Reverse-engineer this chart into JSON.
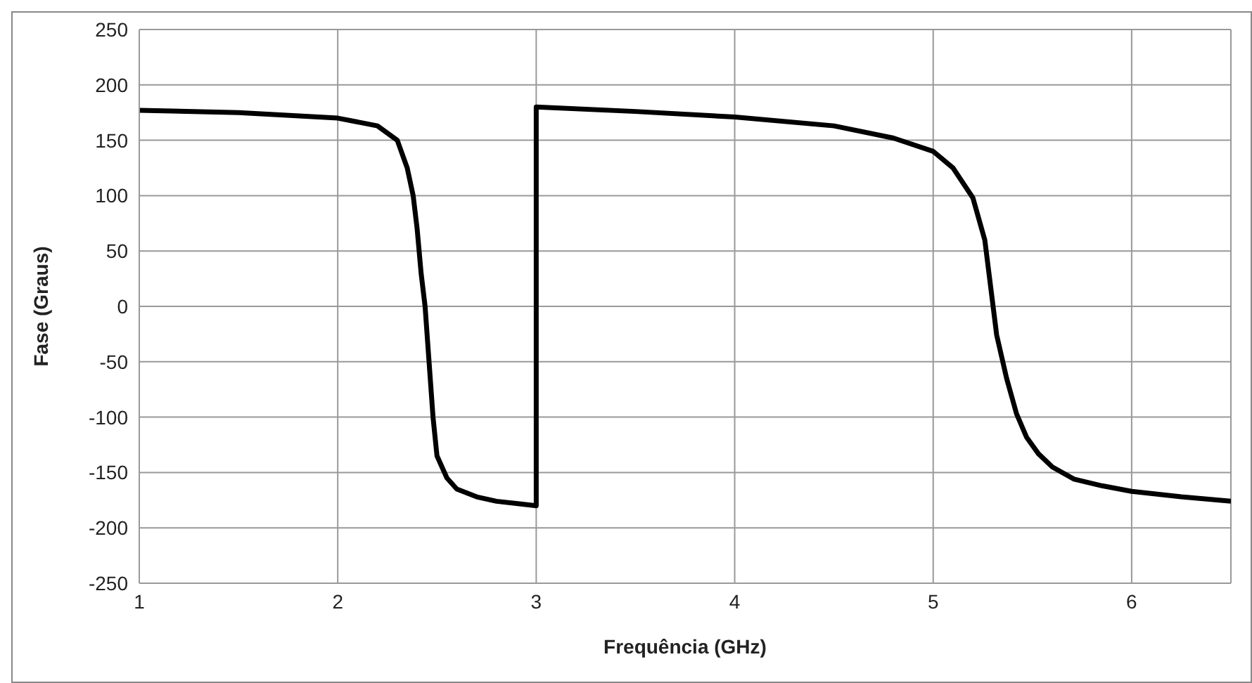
{
  "chart_data": {
    "type": "line",
    "xlabel": "Frequência (GHz)",
    "ylabel": "Fase (Graus)",
    "grid": true,
    "marker": "none",
    "line_style": "solid",
    "xlim": [
      1,
      6.5
    ],
    "xticks": [
      1,
      2,
      3,
      4,
      5,
      6
    ],
    "ylim": [
      -250,
      250
    ],
    "yticks": [
      -250,
      -200,
      -150,
      -100,
      -50,
      0,
      50,
      100,
      150,
      200,
      250
    ],
    "series": [
      {
        "color": "#000000",
        "x": [
          1,
          1.5,
          2,
          2.2,
          2.3,
          2.35,
          2.38,
          2.4,
          2.42,
          2.44,
          2.46,
          2.48,
          2.5,
          2.55,
          2.6,
          2.7,
          2.8,
          2.9,
          3,
          3,
          3.5,
          4,
          4.5,
          4.8,
          5,
          5.1,
          5.2,
          5.26,
          5.32,
          5.37,
          5.42,
          5.47,
          5.53,
          5.6,
          5.71,
          5.85,
          6,
          6.25,
          6.5
        ],
        "values": [
          177,
          175,
          170,
          163,
          150,
          125,
          100,
          70,
          30,
          0,
          -50,
          -100,
          -135,
          -155,
          -165,
          -172,
          -176,
          -178,
          -180,
          180,
          176,
          171,
          163,
          152,
          140,
          125,
          98,
          60,
          -26,
          -65,
          -97,
          -118,
          -133,
          -145,
          -156,
          -162,
          -167,
          -172,
          -176
        ]
      }
    ]
  }
}
